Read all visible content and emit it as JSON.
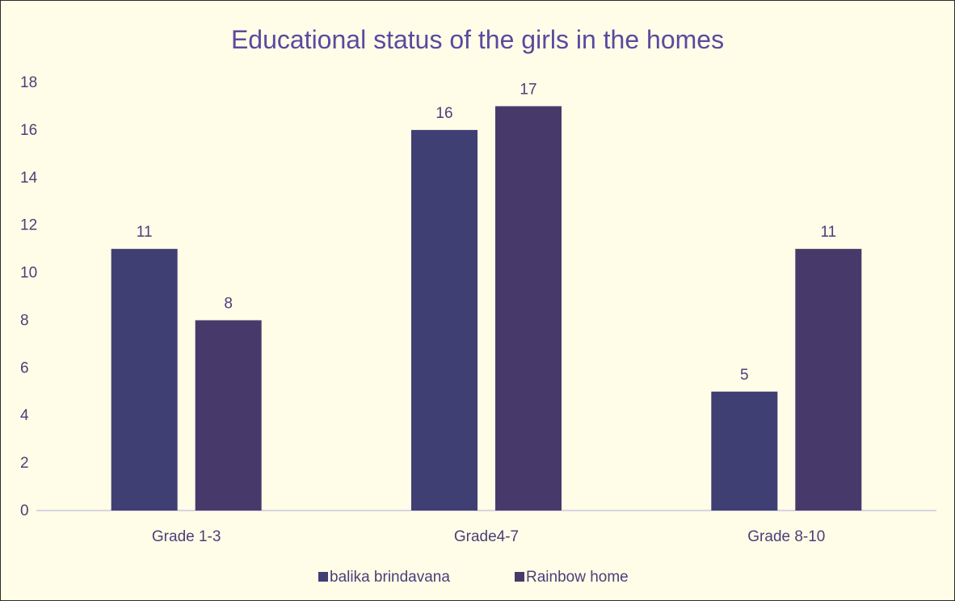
{
  "chart_data": {
    "type": "bar",
    "title": "Educational status of the girls in the homes",
    "xlabel": "",
    "ylabel": "",
    "categories": [
      "Grade 1-3",
      "Grade4-7",
      "Grade 8-10"
    ],
    "series": [
      {
        "name": "balika brindavana",
        "values": [
          11,
          16,
          5
        ],
        "color": "#3f3f74"
      },
      {
        "name": "Rainbow home",
        "values": [
          8,
          17,
          11
        ],
        "color": "#473a6b"
      }
    ],
    "ylim": [
      0,
      18
    ],
    "yticks": [
      0,
      2,
      4,
      6,
      8,
      10,
      12,
      14,
      16,
      18
    ],
    "grid": false,
    "legend_position": "bottom",
    "data_labels": true,
    "title_color": "#5a4aa0",
    "text_color": "#4a3f7a",
    "axis_color": "#c9c7e0"
  }
}
